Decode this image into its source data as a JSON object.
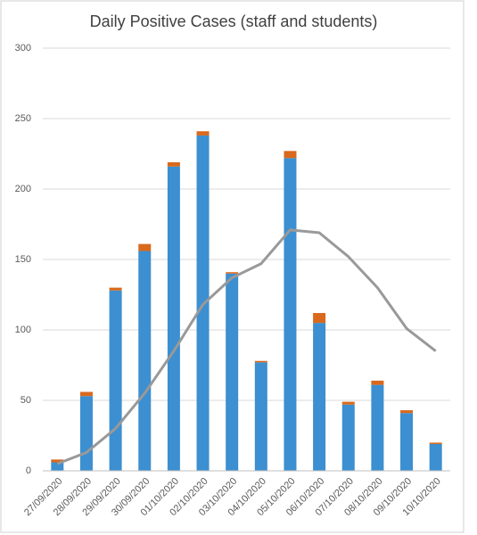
{
  "chart_data": {
    "type": "bar",
    "stacked": true,
    "title": "Daily Positive Cases (staff and students)",
    "categories": [
      "27/09/2020",
      "28/09/2020",
      "29/09/2020",
      "30/09/2020",
      "01/10/2020",
      "02/10/2020",
      "03/10/2020",
      "04/10/2020",
      "05/10/2020",
      "06/10/2020",
      "07/10/2020",
      "08/10/2020",
      "09/10/2020",
      "10/10/2020"
    ],
    "series": [
      {
        "type": "bar",
        "color": "#3c8fd0",
        "values": [
          6,
          53,
          128,
          156,
          216,
          238,
          140,
          77,
          222,
          105,
          47,
          61,
          41,
          19
        ]
      },
      {
        "type": "bar",
        "color": "#d9691c",
        "values": [
          2,
          3,
          2,
          5,
          3,
          3,
          1,
          1,
          5,
          7,
          2,
          3,
          2,
          1
        ]
      },
      {
        "type": "line",
        "color": "#999999",
        "values": [
          5,
          13,
          30,
          55,
          85,
          118,
          137,
          147,
          171,
          169,
          152,
          130,
          101,
          85
        ]
      }
    ],
    "ylim": [
      0,
      300
    ],
    "yticks": [
      0,
      50,
      100,
      150,
      200,
      250,
      300
    ],
    "grid": true
  }
}
